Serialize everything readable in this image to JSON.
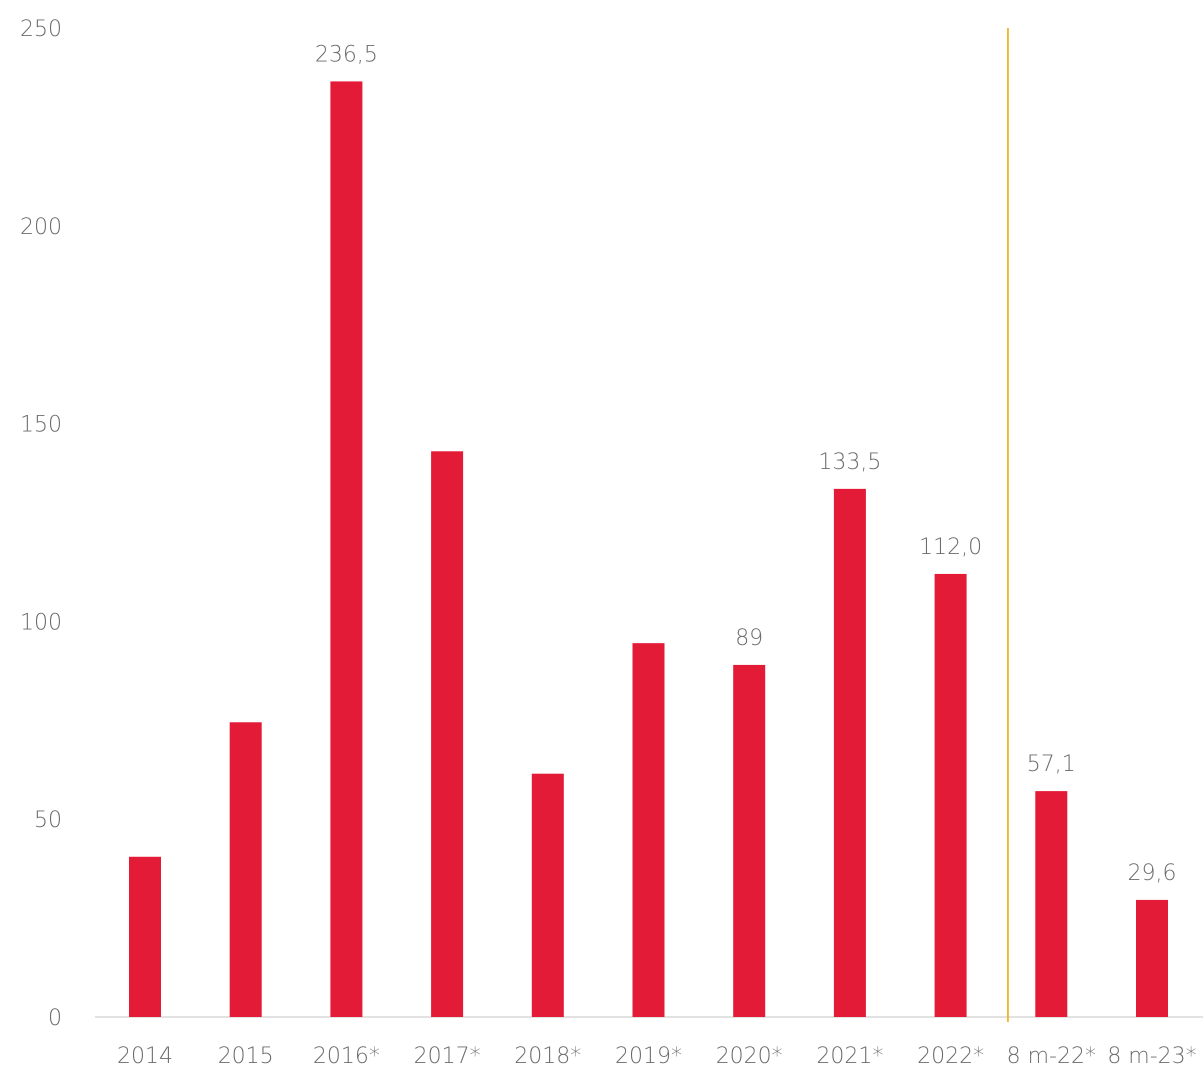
{
  "chart_data": {
    "type": "bar",
    "categories": [
      "2014",
      "2015",
      "2016*",
      "2017*",
      "2018*",
      "2019*",
      "2020*",
      "2021*",
      "2022*",
      "8 m-22*",
      "8 m-23*"
    ],
    "values": [
      40.5,
      74.5,
      236.5,
      143,
      61.5,
      94.5,
      89,
      133.5,
      112.0,
      57.1,
      29.6
    ],
    "data_labels": [
      null,
      null,
      "236,5",
      null,
      null,
      null,
      "89",
      "133,5",
      "112,0",
      "57,1",
      "29,6"
    ],
    "y_ticks": [
      "0",
      "50",
      "100",
      "150",
      "200",
      "250"
    ],
    "ylim": [
      0,
      250
    ],
    "title": "",
    "xlabel": "",
    "ylabel": "",
    "grid": false,
    "bar_color": "#e31b36",
    "divider_color": "#f0a500",
    "divider_after_category": "2022*"
  }
}
